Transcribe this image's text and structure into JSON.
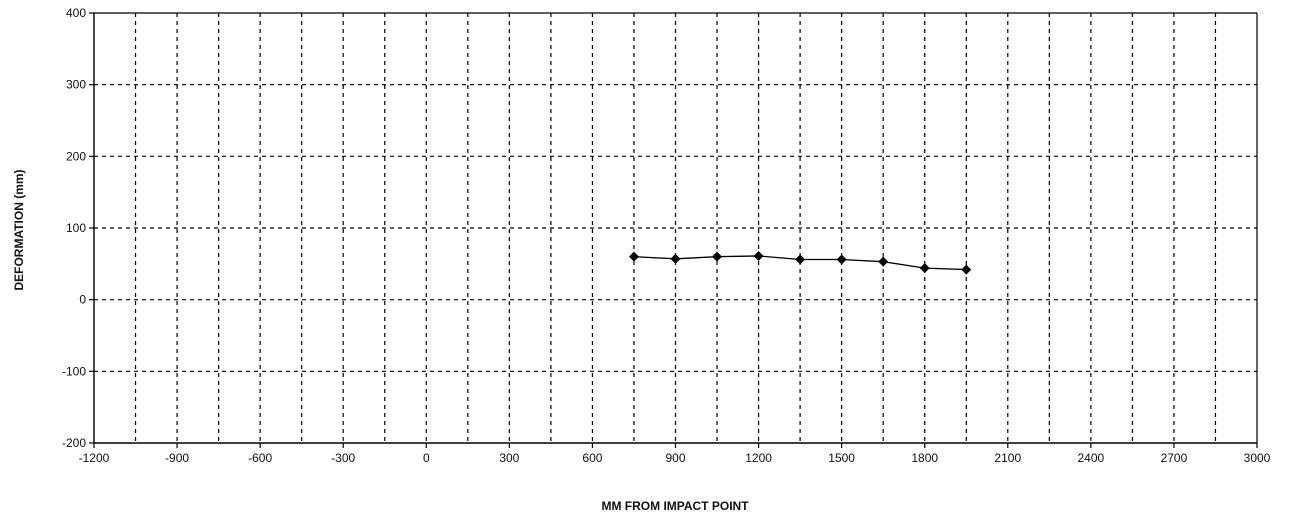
{
  "chart_data": {
    "type": "line",
    "title": "",
    "xlabel": "MM FROM IMPACT POINT",
    "ylabel": "DEFORMATION (mm)",
    "xlim": [
      -1200,
      3000
    ],
    "ylim": [
      -200,
      400
    ],
    "x_ticks": [
      -1200,
      -900,
      -600,
      -300,
      0,
      300,
      600,
      900,
      1200,
      1500,
      1800,
      2100,
      2400,
      2700,
      3000
    ],
    "y_ticks": [
      -200,
      -100,
      0,
      100,
      200,
      300,
      400
    ],
    "x_minor_step": 150,
    "grid": true,
    "grid_style": "dashed",
    "legend": "none",
    "colors": {
      "series": "#000000",
      "grid": "#000000",
      "axes": "#000000"
    },
    "series": [
      {
        "marker": "diamond",
        "x": [
          750,
          900,
          1050,
          1200,
          1350,
          1500,
          1650,
          1800,
          1950
        ],
        "y": [
          60,
          57,
          60,
          61,
          56,
          56,
          53,
          44,
          42
        ]
      }
    ]
  }
}
